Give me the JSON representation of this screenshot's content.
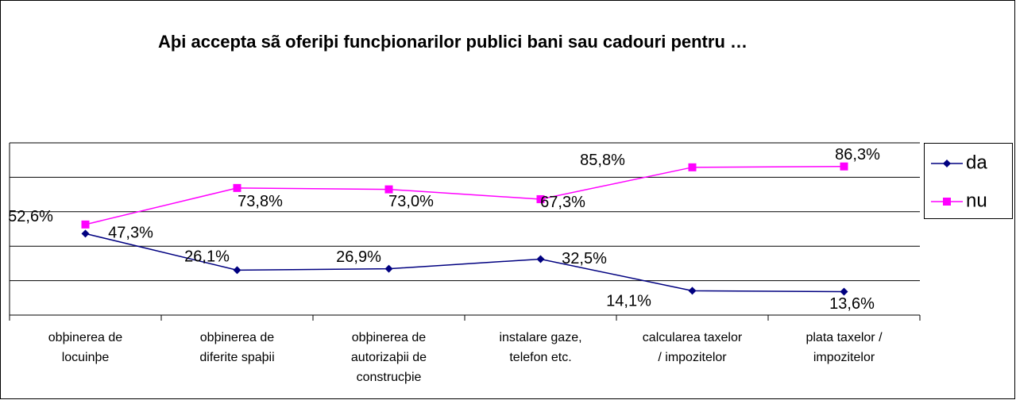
{
  "chart_data": {
    "type": "line",
    "title": "Aþi accepta sã oferiþi funcþionarilor publici bani sau cadouri pentru …",
    "categories": [
      [
        "obþinerea de",
        "locuinþe"
      ],
      [
        "obþinerea de",
        "diferite spaþii"
      ],
      [
        "obþinerea de",
        "autorizaþii de",
        "construcþie"
      ],
      [
        "instalare gaze,",
        "telefon etc."
      ],
      [
        "calcularea taxelor",
        "/ impozitelor"
      ],
      [
        "plata taxelor /",
        "impozitelor"
      ]
    ],
    "series": [
      {
        "name": "da",
        "color": "#000080",
        "marker": "diamond",
        "values": [
          47.3,
          26.1,
          26.9,
          32.5,
          14.1,
          13.6
        ],
        "value_labels": [
          "47,3%",
          "26,1%",
          "26,9%",
          "32,5%",
          "14,1%",
          "13,6%"
        ]
      },
      {
        "name": "nu",
        "color": "#ff00ff",
        "marker": "square",
        "values": [
          52.6,
          73.8,
          73.0,
          67.3,
          85.8,
          86.3
        ],
        "value_labels": [
          "52,6%",
          "73,8%",
          "73,0%",
          "67,3%",
          "85,8%",
          "86,3%"
        ]
      }
    ],
    "ylim": [
      0,
      100
    ],
    "yticks": [
      0,
      20,
      40,
      60,
      80,
      100
    ],
    "grid": true,
    "legend": "right"
  }
}
